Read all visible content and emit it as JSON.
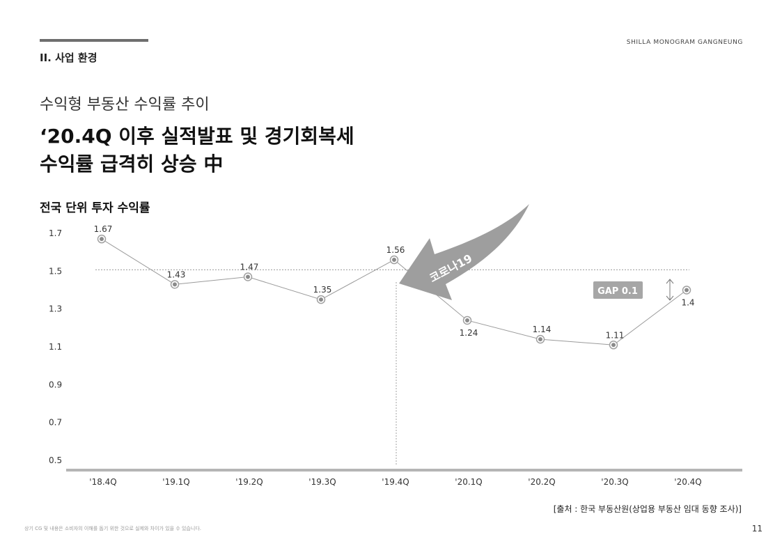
{
  "header": {
    "section": "II. 사업 환경",
    "brand": "SHILLA MONOGRAM GANGNEUNG"
  },
  "main": {
    "subtitle": "수익형 부동산 수익률 추이",
    "headline_line1": "‘20.4Q 이후 실적발표 및 경기회복세",
    "headline_line2": "수익률 급격히 상승 中",
    "chart_label": "전국 단위 투자 수익률"
  },
  "chart_data": {
    "type": "line",
    "categories": [
      "'18.4Q",
      "'19.1Q",
      "'19.2Q",
      "'19.3Q",
      "'19.4Q",
      "'20.1Q",
      "'20.2Q",
      "'20.3Q",
      "'20.4Q"
    ],
    "values": [
      1.67,
      1.43,
      1.47,
      1.35,
      1.56,
      1.24,
      1.14,
      1.11,
      1.4
    ],
    "data_labels": [
      "1.67",
      "1.43",
      "1.47",
      "1.35",
      "1.56",
      "1.24",
      "1.14",
      "1.11",
      "1.4"
    ],
    "yticks": [
      "1.7",
      "1.5",
      "1.3",
      "1.1",
      "0.9",
      "0.7",
      "0.5"
    ],
    "ylim": [
      0.5,
      1.7
    ],
    "reference_line_value": 1.5,
    "vertical_marker_category": "'19.4Q",
    "arrow_label": "코로나19",
    "gap_label": "GAP 0.1",
    "colors": {
      "line": "#9a9a9a",
      "point": "#8a8a8a",
      "arrow": "#9e9e9e",
      "gap_box": "#a6a6a6",
      "axis": "#b5b5b5"
    }
  },
  "footer": {
    "source": "[출처 : 한국 부동산원(상업용 부동산 임대 동향 조사)]",
    "disclaimer": "상기 CG 및 내용은 소비자의 이해를 돕기 위한 것으로 실제와 차이가 있을 수 있습니다.",
    "page": "11"
  }
}
